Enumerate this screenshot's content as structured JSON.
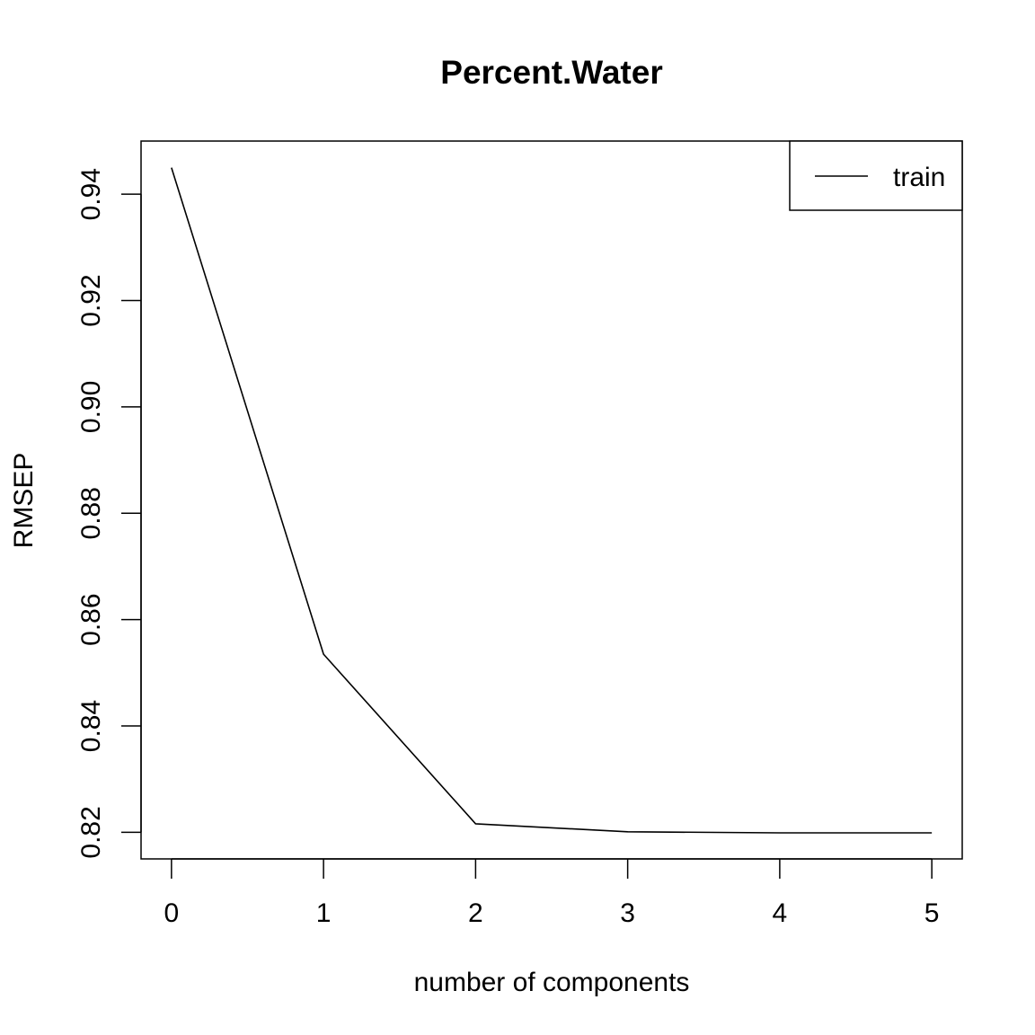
{
  "chart_data": {
    "type": "line",
    "title": "Percent.Water",
    "xlabel": "number of components",
    "ylabel": "RMSEP",
    "x": [
      0,
      1,
      2,
      3,
      4,
      5
    ],
    "series": [
      {
        "name": "train",
        "values": [
          0.945,
          0.8535,
          0.8216,
          0.8201,
          0.8199,
          0.8199
        ]
      }
    ],
    "xticks": [
      0,
      1,
      2,
      3,
      4,
      5
    ],
    "xtick_labels": [
      "0",
      "1",
      "2",
      "3",
      "4",
      "5"
    ],
    "yticks": [
      0.82,
      0.84,
      0.86,
      0.88,
      0.9,
      0.92,
      0.94
    ],
    "ytick_labels": [
      "0.82",
      "0.84",
      "0.86",
      "0.88",
      "0.90",
      "0.92",
      "0.94"
    ],
    "xlim": [
      -0.2,
      5.2
    ],
    "ylim": [
      0.815,
      0.95
    ],
    "grid": false,
    "legend_position": "top-right",
    "colors": {
      "line": "#000000",
      "axes": "#000000",
      "background": "#ffffff"
    }
  }
}
